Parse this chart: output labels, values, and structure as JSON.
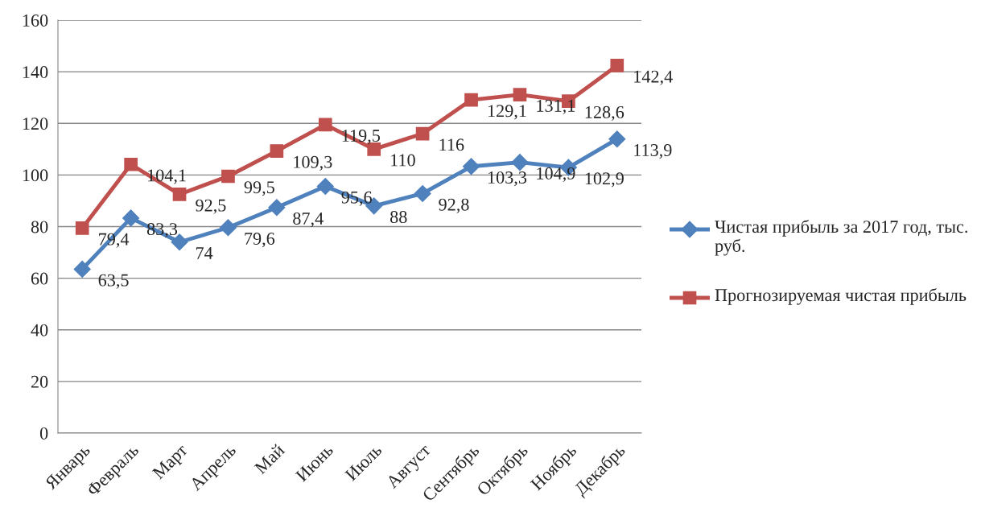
{
  "chart_data": {
    "type": "line",
    "categories": [
      "Январь",
      "Февраль",
      "Март",
      "Апрель",
      "Май",
      "Июнь",
      "Июль",
      "Август",
      "Сентябрь",
      "Октябрь",
      "Ноябрь",
      "Декабрь"
    ],
    "series": [
      {
        "name": "Чистая прибыль за 2017 год, тыс. руб.",
        "color": "#4f81bd",
        "marker": "diamond",
        "values": [
          63.5,
          83.3,
          74,
          79.6,
          87.4,
          95.6,
          88,
          92.8,
          103.3,
          104.9,
          102.9,
          113.9
        ],
        "value_labels": [
          "63,5",
          "83,3",
          "74",
          "79,6",
          "87,4",
          "95,6",
          "88",
          "92,8",
          "103,3",
          "104,9",
          "102,9",
          "113,9"
        ]
      },
      {
        "name": "Прогнозируемая чистая прибыль",
        "color": "#c0504d",
        "marker": "square",
        "values": [
          79.4,
          104.1,
          92.5,
          99.5,
          109.3,
          119.5,
          110,
          116,
          129.1,
          131.1,
          128.6,
          142.4
        ],
        "value_labels": [
          "79,4",
          "104,1",
          "92,5",
          "99,5",
          "109,3",
          "119,5",
          "110",
          "116",
          "129,1",
          "131,1",
          "128,6",
          "142,4"
        ]
      }
    ],
    "ylim": [
      0,
      160
    ],
    "yticks": [
      0,
      20,
      40,
      60,
      80,
      100,
      120,
      140,
      160
    ],
    "grid": "y",
    "legend": "right",
    "line_style": "solid"
  }
}
